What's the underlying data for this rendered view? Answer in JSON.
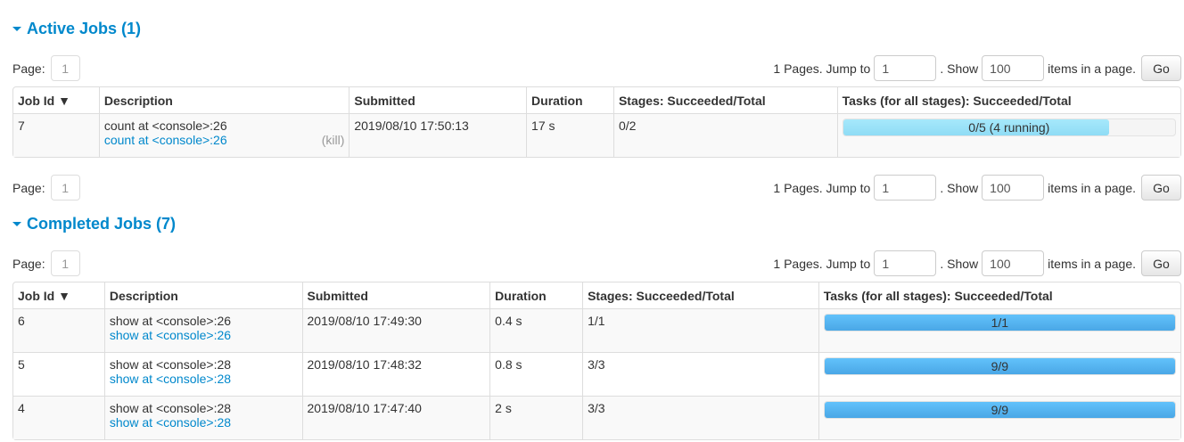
{
  "active": {
    "title": "Active Jobs (1)",
    "pager": {
      "page_label": "Page:",
      "page": "1",
      "pages_text": "1 Pages. Jump to",
      "jump": "1",
      "show_text": ". Show",
      "show": "100",
      "items_text": "items in a page.",
      "go": "Go"
    },
    "headers": [
      "Job Id ▼",
      "Description",
      "Submitted",
      "Duration",
      "Stages: Succeeded/Total",
      "Tasks (for all stages): Succeeded/Total"
    ],
    "rows": [
      {
        "id": "7",
        "desc": "count at <console>:26",
        "link": "count at <console>:26",
        "kill": "(kill)",
        "submitted": "2019/08/10 17:50:13",
        "duration": "17 s",
        "stages": "0/2",
        "tasks": "0/5 (4 running)",
        "progress": 0,
        "running": 0.8
      }
    ]
  },
  "active_bottom_pager": {
    "page_label": "Page:",
    "page": "1",
    "pages_text": "1 Pages. Jump to",
    "jump": "1",
    "show_text": ". Show",
    "show": "100",
    "items_text": "items in a page.",
    "go": "Go"
  },
  "completed": {
    "title": "Completed Jobs (7)",
    "pager": {
      "page_label": "Page:",
      "page": "1",
      "pages_text": "1 Pages. Jump to",
      "jump": "1",
      "show_text": ". Show",
      "show": "100",
      "items_text": "items in a page.",
      "go": "Go"
    },
    "headers": [
      "Job Id ▼",
      "Description",
      "Submitted",
      "Duration",
      "Stages: Succeeded/Total",
      "Tasks (for all stages): Succeeded/Total"
    ],
    "rows": [
      {
        "id": "6",
        "desc": "show at <console>:26",
        "link": "show at <console>:26",
        "submitted": "2019/08/10 17:49:30",
        "duration": "0.4 s",
        "stages": "1/1",
        "tasks": "1/1",
        "progress": 1
      },
      {
        "id": "5",
        "desc": "show at <console>:28",
        "link": "show at <console>:28",
        "submitted": "2019/08/10 17:48:32",
        "duration": "0.8 s",
        "stages": "3/3",
        "tasks": "9/9",
        "progress": 1
      },
      {
        "id": "4",
        "desc": "show at <console>:28",
        "link": "show at <console>:28",
        "submitted": "2019/08/10 17:47:40",
        "duration": "2 s",
        "stages": "3/3",
        "tasks": "9/9",
        "progress": 1
      }
    ]
  }
}
